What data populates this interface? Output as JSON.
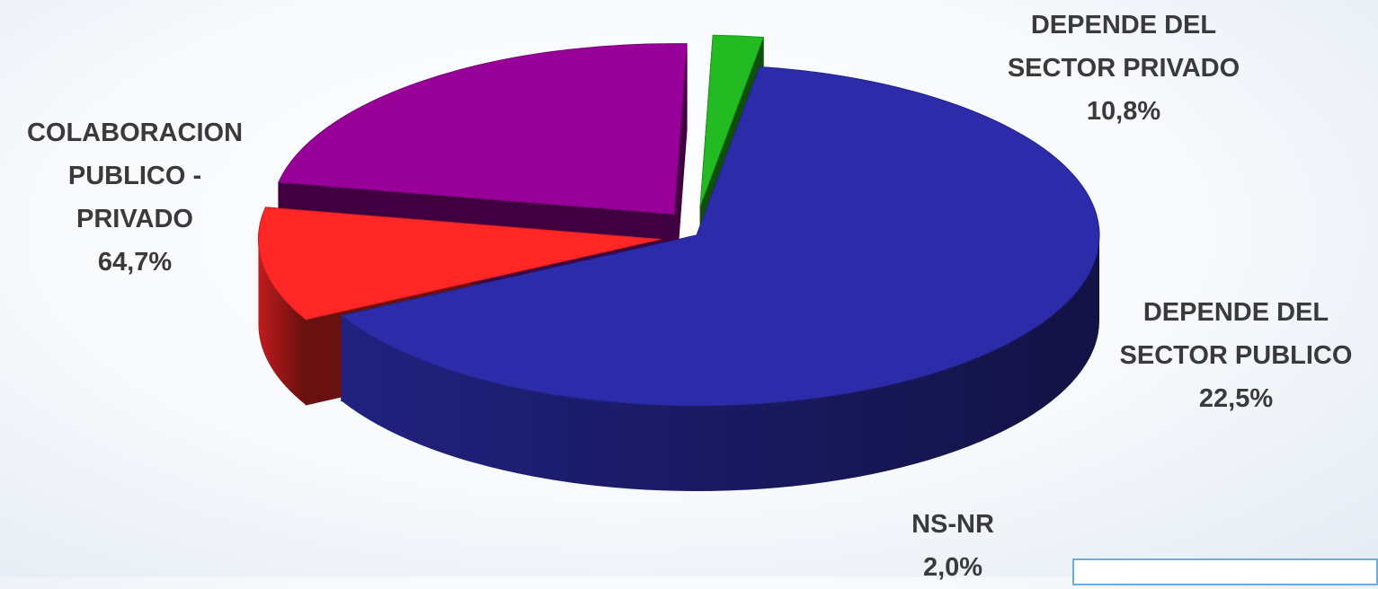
{
  "chart_data": {
    "type": "pie",
    "style": "3d-exploded",
    "slices": [
      {
        "key": "colab",
        "name_lines": [
          "COLABORACION",
          "PUBLICO -",
          "PRIVADO"
        ],
        "value": 64.7,
        "value_label": "64,7%",
        "color": "#2c2caa"
      },
      {
        "key": "priv",
        "name_lines": [
          "DEPENDE DEL",
          "SECTOR PRIVADO"
        ],
        "value": 10.8,
        "value_label": "10,8%",
        "color": "#ff2626"
      },
      {
        "key": "pub",
        "name_lines": [
          "DEPENDE DEL",
          "SECTOR PUBLICO"
        ],
        "value": 22.5,
        "value_label": "22,5%",
        "color": "#990099"
      },
      {
        "key": "nsnr",
        "name_lines": [
          "NS-NR"
        ],
        "value": 2.0,
        "value_label": "2,0%",
        "color": "#22bb22"
      }
    ]
  }
}
